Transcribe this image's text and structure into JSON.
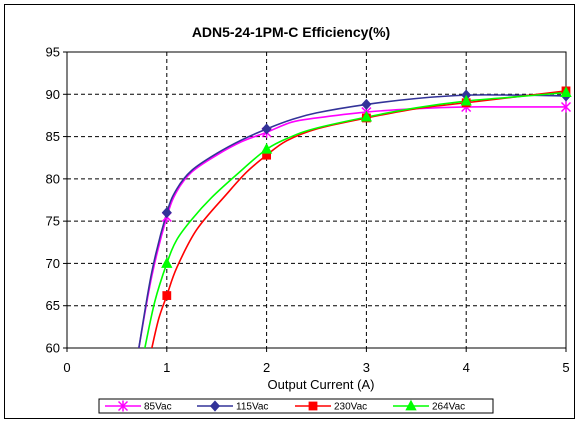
{
  "chart_data": {
    "type": "line",
    "title": "ADN5-24-1PM-C Efficiency(%)",
    "xlabel": "Output Current (A)",
    "ylabel": "",
    "xlim": [
      0,
      5
    ],
    "ylim": [
      60,
      95
    ],
    "xticks": [
      0,
      1,
      2,
      3,
      4,
      5
    ],
    "yticks": [
      60,
      65,
      70,
      75,
      80,
      85,
      90,
      95
    ],
    "grid": true,
    "legend_position": "bottom",
    "series": [
      {
        "name": "85Vac",
        "color": "#FF00FF",
        "marker": "star",
        "x": [
          0.72,
          0.85,
          1.0,
          1.1,
          1.25,
          1.5,
          1.75,
          2.0,
          2.25,
          2.5,
          3.0,
          3.5,
          4.0,
          4.5,
          5.0
        ],
        "y": [
          60.0,
          68.5,
          75.5,
          78.5,
          80.8,
          82.8,
          84.4,
          85.5,
          86.7,
          87.2,
          87.9,
          88.3,
          88.5,
          88.5,
          88.5
        ],
        "markers": [
          [
            1,
            75.5
          ],
          [
            2,
            85.5
          ],
          [
            3,
            87.9
          ],
          [
            4,
            88.5
          ],
          [
            5,
            88.5
          ]
        ]
      },
      {
        "name": "115Vac",
        "color": "#333399",
        "marker": "diamond",
        "x": [
          0.72,
          0.85,
          1.0,
          1.1,
          1.25,
          1.5,
          1.75,
          2.0,
          2.25,
          2.5,
          3.0,
          3.5,
          4.0,
          4.5,
          5.0
        ],
        "y": [
          60.0,
          69.0,
          76.0,
          78.8,
          81.0,
          83.0,
          84.6,
          85.9,
          87.0,
          87.8,
          88.8,
          89.5,
          89.9,
          89.9,
          89.8
        ],
        "markers": [
          [
            1,
            76.0
          ],
          [
            2,
            85.9
          ],
          [
            3,
            88.8
          ],
          [
            4,
            89.9
          ],
          [
            5,
            89.8
          ]
        ]
      },
      {
        "name": "230Vac",
        "color": "#FF0000",
        "marker": "square",
        "x": [
          0.85,
          0.92,
          1.0,
          1.1,
          1.3,
          1.6,
          1.8,
          2.0,
          2.2,
          2.5,
          3.0,
          3.5,
          4.0,
          4.5,
          5.0
        ],
        "y": [
          60.0,
          63.5,
          66.2,
          69.5,
          74.0,
          78.2,
          80.8,
          82.8,
          84.5,
          85.9,
          87.2,
          88.3,
          89.0,
          89.7,
          90.4
        ],
        "markers": [
          [
            1,
            66.2
          ],
          [
            2,
            82.8
          ],
          [
            3,
            87.2
          ],
          [
            4,
            89.0
          ],
          [
            5,
            90.4
          ]
        ]
      },
      {
        "name": "264Vac",
        "color": "#00FF00",
        "marker": "triangle",
        "x": [
          0.78,
          0.88,
          1.0,
          1.1,
          1.25,
          1.45,
          1.7,
          2.0,
          2.25,
          2.5,
          3.0,
          3.5,
          4.0,
          4.5,
          5.0
        ],
        "y": [
          60.0,
          65.5,
          70.0,
          72.8,
          75.2,
          77.8,
          80.5,
          83.5,
          85.0,
          86.0,
          87.3,
          88.4,
          89.2,
          89.7,
          90.2
        ],
        "markers": [
          [
            1,
            70.0
          ],
          [
            2,
            83.5
          ],
          [
            3,
            87.3
          ],
          [
            4,
            89.2
          ],
          [
            5,
            90.2
          ]
        ]
      }
    ]
  }
}
